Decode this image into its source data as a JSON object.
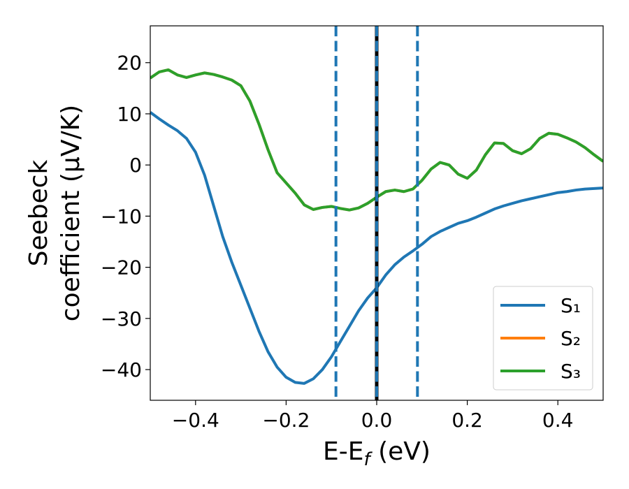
{
  "chart_data": {
    "type": "line",
    "xlabel": [
      "E-E",
      "f",
      " (eV)"
    ],
    "ylabel": [
      "Seebeck",
      "coefficient  (μV/K)"
    ],
    "x": [
      -0.5,
      -0.48,
      -0.46,
      -0.44,
      -0.42,
      -0.4,
      -0.38,
      -0.36,
      -0.34,
      -0.32,
      -0.3,
      -0.28,
      -0.26,
      -0.24,
      -0.22,
      -0.2,
      -0.18,
      -0.16,
      -0.14,
      -0.12,
      -0.1,
      -0.08,
      -0.06,
      -0.04,
      -0.02,
      0,
      0.02,
      0.04,
      0.06,
      0.08,
      0.1,
      0.12,
      0.14,
      0.16,
      0.18,
      0.2,
      0.22,
      0.24,
      0.26,
      0.28,
      0.3,
      0.32,
      0.34,
      0.36,
      0.38,
      0.4,
      0.42,
      0.44,
      0.46,
      0.48,
      0.5
    ],
    "series": [
      {
        "name": "S₁",
        "color": "#1f77b4",
        "values": [
          10.3,
          9,
          7.8,
          6.7,
          5.2,
          2.5,
          -2,
          -8,
          -14,
          -19,
          -23.5,
          -28,
          -32.5,
          -36.5,
          -39.5,
          -41.5,
          -42.5,
          -42.7,
          -41.8,
          -40,
          -37.5,
          -34.5,
          -31.5,
          -28.5,
          -26,
          -24,
          -21.5,
          -19.5,
          -18,
          -16.8,
          -15.5,
          -14,
          -13,
          -12.2,
          -11.4,
          -10.9,
          -10.2,
          -9.4,
          -8.6,
          -8,
          -7.5,
          -7,
          -6.6,
          -6.2,
          -5.8,
          -5.4,
          -5.2,
          -4.9,
          -4.7,
          -4.6,
          -4.5
        ]
      },
      {
        "name": "S₂",
        "color": "#ff7f0e",
        "values": [
          17,
          18.2,
          18.6,
          17.6,
          17.1,
          17.6,
          18,
          17.7,
          17.2,
          16.6,
          15.5,
          12.5,
          8,
          3,
          -1.5,
          -3.5,
          -5.5,
          -7.8,
          -8.7,
          -8.3,
          -8.1,
          -8.5,
          -8.8,
          -8.4,
          -7.5,
          -6.3,
          -5.2,
          -4.9,
          -5.2,
          -4.7,
          -3,
          -0.8,
          0.5,
          0,
          -1.8,
          -2.6,
          -1,
          2,
          4.3,
          4.2,
          2.8,
          2.2,
          3.2,
          5.2,
          6.2,
          6,
          5.3,
          4.5,
          3.4,
          2,
          0.7
        ]
      },
      {
        "name": "S₃",
        "color": "#2ca02c",
        "values": [
          17,
          18.2,
          18.6,
          17.6,
          17.1,
          17.6,
          18,
          17.7,
          17.2,
          16.6,
          15.5,
          12.5,
          8,
          3,
          -1.5,
          -3.5,
          -5.5,
          -7.8,
          -8.7,
          -8.3,
          -8.1,
          -8.5,
          -8.8,
          -8.4,
          -7.5,
          -6.3,
          -5.2,
          -4.9,
          -5.2,
          -4.7,
          -3,
          -0.8,
          0.5,
          0,
          -1.8,
          -2.6,
          -1,
          2,
          4.3,
          4.2,
          2.8,
          2.2,
          3.2,
          5.2,
          6.2,
          6,
          5.3,
          4.5,
          3.4,
          2,
          0.7
        ]
      }
    ],
    "vlines": [
      {
        "x": 0,
        "color": "#000000",
        "dash": false
      },
      {
        "x": -0.09,
        "color": "#1f77b4",
        "dash": true
      },
      {
        "x": 0,
        "color": "#1f77b4",
        "dash": true
      },
      {
        "x": 0.09,
        "color": "#1f77b4",
        "dash": true
      }
    ],
    "xlim": [
      -0.5,
      0.5
    ],
    "ylim": [
      -46,
      27.2
    ],
    "xticks": [
      {
        "value": -0.4,
        "label": "−0.4"
      },
      {
        "value": -0.2,
        "label": "−0.2"
      },
      {
        "value": 0,
        "label": "0.0"
      },
      0.2,
      0.4
    ],
    "yticks": [
      {
        "value": -40,
        "label": "−40"
      },
      {
        "value": -30,
        "label": "−30"
      },
      {
        "value": -20,
        "label": "−20"
      },
      {
        "value": -10,
        "label": "−10"
      },
      0,
      10,
      20
    ],
    "legend": "lower right"
  }
}
